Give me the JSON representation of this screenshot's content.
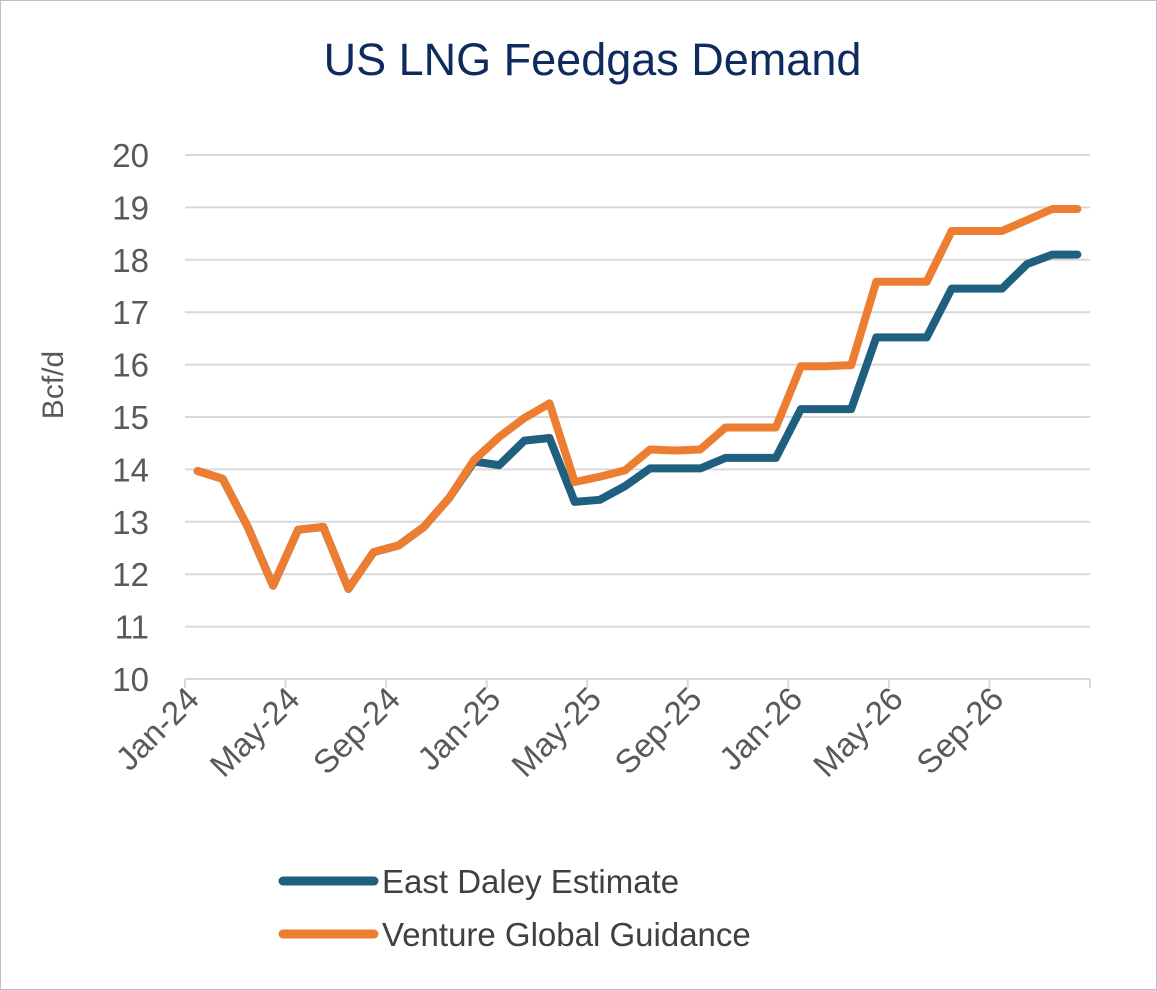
{
  "chart_data": {
    "type": "line",
    "title": "US LNG Feedgas Demand",
    "xlabel": "",
    "ylabel": "Bcf/d",
    "ylim": [
      10,
      20
    ],
    "yticks": [
      10,
      11,
      12,
      13,
      14,
      15,
      16,
      17,
      18,
      19,
      20
    ],
    "grid": true,
    "legend_position": "bottom",
    "x_tick_labels": [
      "Jan-24",
      "May-24",
      "Sep-24",
      "Jan-25",
      "May-25",
      "Sep-25",
      "Jan-26",
      "May-26",
      "Sep-26"
    ],
    "categories": [
      "Jan-24",
      "Feb-24",
      "Mar-24",
      "Apr-24",
      "May-24",
      "Jun-24",
      "Jul-24",
      "Aug-24",
      "Sep-24",
      "Oct-24",
      "Nov-24",
      "Dec-24",
      "Jan-25",
      "Feb-25",
      "Mar-25",
      "Apr-25",
      "May-25",
      "Jun-25",
      "Jul-25",
      "Aug-25",
      "Sep-25",
      "Oct-25",
      "Nov-25",
      "Dec-25",
      "Jan-26",
      "Feb-26",
      "Mar-26",
      "Apr-26",
      "May-26",
      "Jun-26",
      "Jul-26",
      "Aug-26",
      "Sep-26",
      "Oct-26",
      "Nov-26",
      "Dec-26"
    ],
    "series": [
      {
        "name": "East Daley Estimate",
        "color": "#1f5f7f",
        "values": [
          13.97,
          13.82,
          12.9,
          11.78,
          12.85,
          12.9,
          11.72,
          12.42,
          12.55,
          12.9,
          13.45,
          14.15,
          14.08,
          14.55,
          14.6,
          13.38,
          13.42,
          13.68,
          14.02,
          14.02,
          14.02,
          14.22,
          14.22,
          14.22,
          15.15,
          15.15,
          15.15,
          16.52,
          16.52,
          16.52,
          17.45,
          17.45,
          17.45,
          17.92,
          18.1,
          18.1
        ]
      },
      {
        "name": "Venture Global Guidance",
        "color": "#ed7d31",
        "values": [
          13.97,
          13.82,
          12.9,
          11.78,
          12.85,
          12.9,
          11.72,
          12.42,
          12.55,
          12.9,
          13.45,
          14.18,
          14.62,
          14.98,
          15.26,
          13.76,
          13.86,
          13.98,
          14.38,
          14.36,
          14.38,
          14.8,
          14.8,
          14.8,
          15.97,
          15.97,
          15.99,
          17.58,
          17.58,
          17.58,
          18.55,
          18.55,
          18.55,
          18.76,
          18.97,
          18.97
        ]
      }
    ]
  }
}
